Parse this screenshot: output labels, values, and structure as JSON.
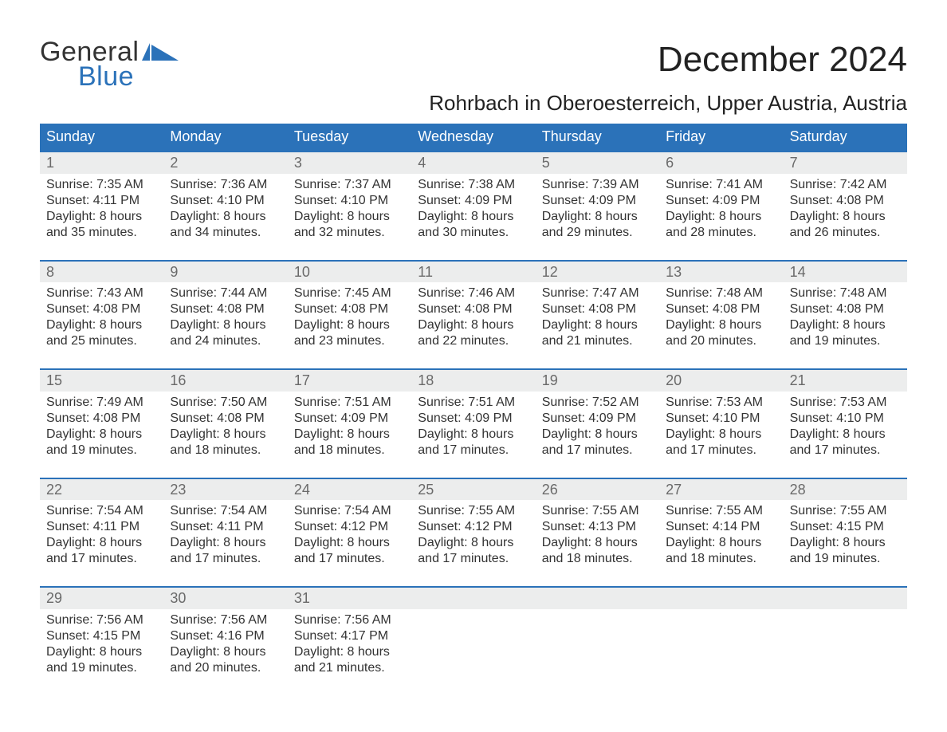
{
  "brand": {
    "line1": "General",
    "line2": "Blue",
    "text_color": "#333333",
    "accent_color": "#2b72b9"
  },
  "title": {
    "month_year": "December 2024",
    "location": "Rohrbach in Oberoesterreich, Upper Austria, Austria",
    "title_fontsize_pt": 33,
    "location_fontsize_pt": 20
  },
  "colors": {
    "header_bg": "#2b72b9",
    "header_text": "#ffffff",
    "stripe_bg": "#eceded",
    "page_bg": "#ffffff",
    "body_text": "#333333",
    "daynum_text": "#6a6a6a",
    "week_divider": "#2b72b9"
  },
  "layout": {
    "columns": 7,
    "weeks": 5,
    "body_fontsize_pt": 12,
    "header_fontsize_pt": 14
  },
  "weekdays": [
    "Sunday",
    "Monday",
    "Tuesday",
    "Wednesday",
    "Thursday",
    "Friday",
    "Saturday"
  ],
  "days": [
    {
      "n": "1",
      "sunrise": "7:35 AM",
      "sunset": "4:11 PM",
      "dl1": "Daylight: 8 hours",
      "dl2": "and 35 minutes."
    },
    {
      "n": "2",
      "sunrise": "7:36 AM",
      "sunset": "4:10 PM",
      "dl1": "Daylight: 8 hours",
      "dl2": "and 34 minutes."
    },
    {
      "n": "3",
      "sunrise": "7:37 AM",
      "sunset": "4:10 PM",
      "dl1": "Daylight: 8 hours",
      "dl2": "and 32 minutes."
    },
    {
      "n": "4",
      "sunrise": "7:38 AM",
      "sunset": "4:09 PM",
      "dl1": "Daylight: 8 hours",
      "dl2": "and 30 minutes."
    },
    {
      "n": "5",
      "sunrise": "7:39 AM",
      "sunset": "4:09 PM",
      "dl1": "Daylight: 8 hours",
      "dl2": "and 29 minutes."
    },
    {
      "n": "6",
      "sunrise": "7:41 AM",
      "sunset": "4:09 PM",
      "dl1": "Daylight: 8 hours",
      "dl2": "and 28 minutes."
    },
    {
      "n": "7",
      "sunrise": "7:42 AM",
      "sunset": "4:08 PM",
      "dl1": "Daylight: 8 hours",
      "dl2": "and 26 minutes."
    },
    {
      "n": "8",
      "sunrise": "7:43 AM",
      "sunset": "4:08 PM",
      "dl1": "Daylight: 8 hours",
      "dl2": "and 25 minutes."
    },
    {
      "n": "9",
      "sunrise": "7:44 AM",
      "sunset": "4:08 PM",
      "dl1": "Daylight: 8 hours",
      "dl2": "and 24 minutes."
    },
    {
      "n": "10",
      "sunrise": "7:45 AM",
      "sunset": "4:08 PM",
      "dl1": "Daylight: 8 hours",
      "dl2": "and 23 minutes."
    },
    {
      "n": "11",
      "sunrise": "7:46 AM",
      "sunset": "4:08 PM",
      "dl1": "Daylight: 8 hours",
      "dl2": "and 22 minutes."
    },
    {
      "n": "12",
      "sunrise": "7:47 AM",
      "sunset": "4:08 PM",
      "dl1": "Daylight: 8 hours",
      "dl2": "and 21 minutes."
    },
    {
      "n": "13",
      "sunrise": "7:48 AM",
      "sunset": "4:08 PM",
      "dl1": "Daylight: 8 hours",
      "dl2": "and 20 minutes."
    },
    {
      "n": "14",
      "sunrise": "7:48 AM",
      "sunset": "4:08 PM",
      "dl1": "Daylight: 8 hours",
      "dl2": "and 19 minutes."
    },
    {
      "n": "15",
      "sunrise": "7:49 AM",
      "sunset": "4:08 PM",
      "dl1": "Daylight: 8 hours",
      "dl2": "and 19 minutes."
    },
    {
      "n": "16",
      "sunrise": "7:50 AM",
      "sunset": "4:08 PM",
      "dl1": "Daylight: 8 hours",
      "dl2": "and 18 minutes."
    },
    {
      "n": "17",
      "sunrise": "7:51 AM",
      "sunset": "4:09 PM",
      "dl1": "Daylight: 8 hours",
      "dl2": "and 18 minutes."
    },
    {
      "n": "18",
      "sunrise": "7:51 AM",
      "sunset": "4:09 PM",
      "dl1": "Daylight: 8 hours",
      "dl2": "and 17 minutes."
    },
    {
      "n": "19",
      "sunrise": "7:52 AM",
      "sunset": "4:09 PM",
      "dl1": "Daylight: 8 hours",
      "dl2": "and 17 minutes."
    },
    {
      "n": "20",
      "sunrise": "7:53 AM",
      "sunset": "4:10 PM",
      "dl1": "Daylight: 8 hours",
      "dl2": "and 17 minutes."
    },
    {
      "n": "21",
      "sunrise": "7:53 AM",
      "sunset": "4:10 PM",
      "dl1": "Daylight: 8 hours",
      "dl2": "and 17 minutes."
    },
    {
      "n": "22",
      "sunrise": "7:54 AM",
      "sunset": "4:11 PM",
      "dl1": "Daylight: 8 hours",
      "dl2": "and 17 minutes."
    },
    {
      "n": "23",
      "sunrise": "7:54 AM",
      "sunset": "4:11 PM",
      "dl1": "Daylight: 8 hours",
      "dl2": "and 17 minutes."
    },
    {
      "n": "24",
      "sunrise": "7:54 AM",
      "sunset": "4:12 PM",
      "dl1": "Daylight: 8 hours",
      "dl2": "and 17 minutes."
    },
    {
      "n": "25",
      "sunrise": "7:55 AM",
      "sunset": "4:12 PM",
      "dl1": "Daylight: 8 hours",
      "dl2": "and 17 minutes."
    },
    {
      "n": "26",
      "sunrise": "7:55 AM",
      "sunset": "4:13 PM",
      "dl1": "Daylight: 8 hours",
      "dl2": "and 18 minutes."
    },
    {
      "n": "27",
      "sunrise": "7:55 AM",
      "sunset": "4:14 PM",
      "dl1": "Daylight: 8 hours",
      "dl2": "and 18 minutes."
    },
    {
      "n": "28",
      "sunrise": "7:55 AM",
      "sunset": "4:15 PM",
      "dl1": "Daylight: 8 hours",
      "dl2": "and 19 minutes."
    },
    {
      "n": "29",
      "sunrise": "7:56 AM",
      "sunset": "4:15 PM",
      "dl1": "Daylight: 8 hours",
      "dl2": "and 19 minutes."
    },
    {
      "n": "30",
      "sunrise": "7:56 AM",
      "sunset": "4:16 PM",
      "dl1": "Daylight: 8 hours",
      "dl2": "and 20 minutes."
    },
    {
      "n": "31",
      "sunrise": "7:56 AM",
      "sunset": "4:17 PM",
      "dl1": "Daylight: 8 hours",
      "dl2": "and 21 minutes."
    }
  ],
  "labels": {
    "sunrise_prefix": "Sunrise: ",
    "sunset_prefix": "Sunset: "
  }
}
